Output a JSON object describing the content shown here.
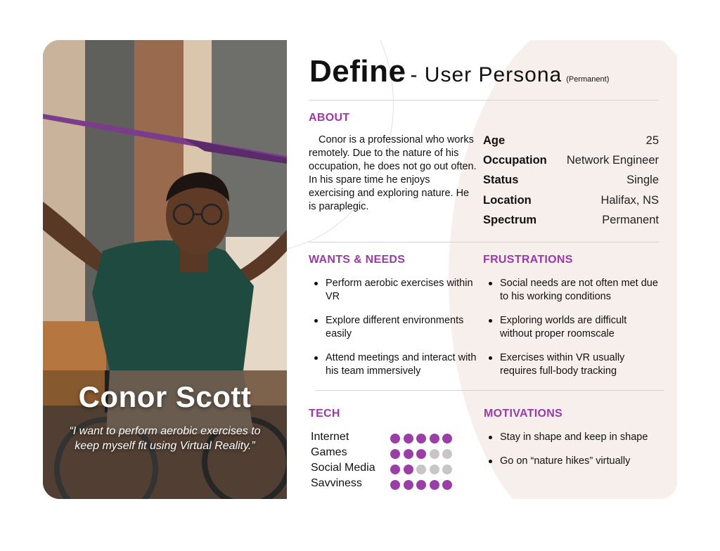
{
  "persona": {
    "name": "Conor Scott",
    "quote": "“I want to perform aerobic exercises to keep myself fit using Virtual Reality.”"
  },
  "header": {
    "title": "Define",
    "subtitle": "- User Persona",
    "tag": "(Permanent)"
  },
  "about": {
    "heading": "ABOUT",
    "text": "Conor is a professional who works remotely. Due to the nature of his occupation, he does not go out often. In his spare time he enjoys exercising and exploring nature. He is paraplegic.",
    "info": [
      {
        "label": "Age",
        "value": "25"
      },
      {
        "label": "Occupation",
        "value": "Network Engineer"
      },
      {
        "label": "Status",
        "value": "Single"
      },
      {
        "label": "Location",
        "value": "Halifax, NS"
      },
      {
        "label": "Spectrum",
        "value": "Permanent"
      }
    ]
  },
  "wants": {
    "heading": "WANTS & NEEDS",
    "items": [
      "Perform aerobic exercises within VR",
      "Explore different environments easily",
      "Attend meetings and interact with his team immersively"
    ]
  },
  "frustrations": {
    "heading": "FRUSTRATIONS",
    "items": [
      "Social needs are not often met due to his working conditions",
      "Exploring worlds are difficult without proper roomscale",
      "Exercises within VR usually requires full-body tracking"
    ]
  },
  "tech": {
    "heading": "TECH",
    "max_rating": 5,
    "items": [
      {
        "label": "Internet",
        "rating": 5
      },
      {
        "label": "Games",
        "rating": 3
      },
      {
        "label": "Social Media",
        "rating": 2
      },
      {
        "label": "Savviness",
        "rating": 5
      }
    ]
  },
  "motivations": {
    "heading": "MOTIVATIONS",
    "items": [
      "Stay in shape and keep in shape",
      "Go on “nature hikes” virtually"
    ]
  },
  "colors": {
    "accent": "#9b3ea7",
    "dot_off": "#c9c5c6"
  }
}
